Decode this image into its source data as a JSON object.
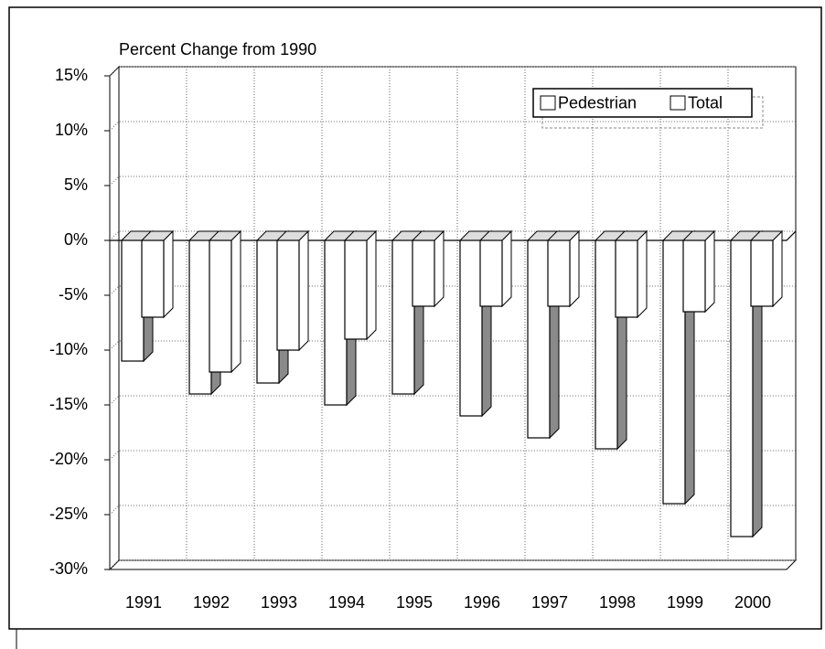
{
  "chart_data": {
    "type": "bar3d",
    "subtitle": "Percent Change from 1990",
    "categories": [
      "1991",
      "1992",
      "1993",
      "1994",
      "1995",
      "1996",
      "1997",
      "1998",
      "1999",
      "2000"
    ],
    "series": [
      {
        "name": "Pedestrian",
        "color": "#ffffff",
        "values": [
          -11,
          -14,
          -13,
          -15,
          -14,
          -16,
          -18,
          -19,
          -24,
          -27
        ]
      },
      {
        "name": "Total",
        "color": "#ffffff",
        "values": [
          -7,
          -12,
          -10,
          -9,
          -6,
          -6,
          -6,
          -7,
          -6.5,
          -6
        ]
      }
    ],
    "ylim": [
      -30,
      15
    ],
    "yticks": [
      {
        "value": -30,
        "label": "-30%"
      },
      {
        "value": -25,
        "label": "-25%"
      },
      {
        "value": -20,
        "label": "-20%"
      },
      {
        "value": -15,
        "label": "-15%"
      },
      {
        "value": -10,
        "label": "-10%"
      },
      {
        "value": -5,
        "label": "-5%"
      },
      {
        "value": 0,
        "label": "0%"
      },
      {
        "value": 5,
        "label": "5%"
      },
      {
        "value": 10,
        "label": "10%"
      },
      {
        "value": 15,
        "label": "15%"
      }
    ],
    "grid": true,
    "legend": "upper right"
  }
}
